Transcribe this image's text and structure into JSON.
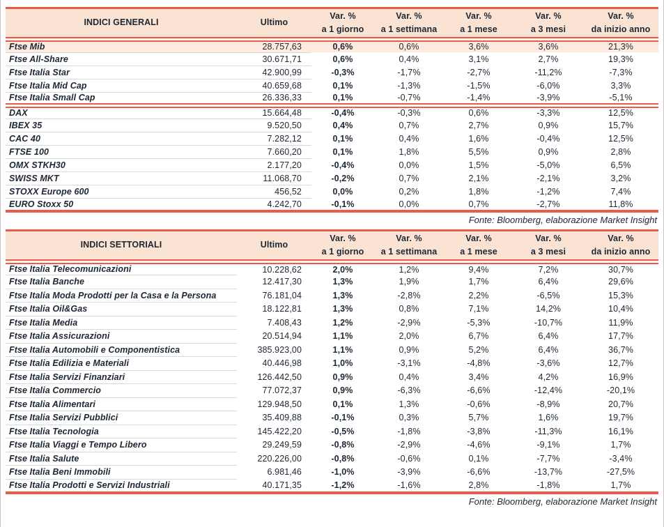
{
  "tables": [
    {
      "title": "INDICI GENERALI",
      "col_ultimo": "Ultimo",
      "cols": [
        {
          "l1": "Var. %",
          "l2": "a 1 giorno"
        },
        {
          "l1": "Var. %",
          "l2": "a 1 settimana"
        },
        {
          "l1": "Var. %",
          "l2": "a 1 mese"
        },
        {
          "l1": "Var. %",
          "l2": "a 3 mesi"
        },
        {
          "l1": "Var. %",
          "l2": "da inizio anno"
        }
      ],
      "source": "Fonte: Bloomberg, elaborazione Market Insight",
      "group_separator_after": 4,
      "rows": [
        {
          "name": "Ftse Mib",
          "ultimo": "28.757,63",
          "d1": "0,6%",
          "w1": "0,6%",
          "m1": "3,6%",
          "m3": "3,6%",
          "ytd": "21,3%",
          "highlight": true
        },
        {
          "name": "Ftse All-Share",
          "ultimo": "30.671,71",
          "d1": "0,6%",
          "w1": "0,4%",
          "m1": "3,1%",
          "m3": "2,7%",
          "ytd": "19,3%"
        },
        {
          "name": "Ftse Italia Star",
          "ultimo": "42.900,99",
          "d1": "-0,3%",
          "w1": "-1,7%",
          "m1": "-2,7%",
          "m3": "-11,2%",
          "ytd": "-7,3%"
        },
        {
          "name": "Ftse Italia Mid Cap",
          "ultimo": "40.659,68",
          "d1": "0,1%",
          "w1": "-1,3%",
          "m1": "-1,5%",
          "m3": "-6,0%",
          "ytd": "3,3%"
        },
        {
          "name": "Ftse Italia Small Cap",
          "ultimo": "26.336,33",
          "d1": "0,1%",
          "w1": "-0,7%",
          "m1": "-1,4%",
          "m3": "-3,9%",
          "ytd": "-5,1%"
        },
        {
          "name": "DAX",
          "ultimo": "15.664,48",
          "d1": "-0,4%",
          "w1": "-0,3%",
          "m1": "0,6%",
          "m3": "-3,3%",
          "ytd": "12,5%"
        },
        {
          "name": "IBEX 35",
          "ultimo": "9.520,50",
          "d1": "0,4%",
          "w1": "0,7%",
          "m1": "2,7%",
          "m3": "0,9%",
          "ytd": "15,7%"
        },
        {
          "name": "CAC 40",
          "ultimo": "7.282,12",
          "d1": "0,1%",
          "w1": "0,4%",
          "m1": "1,6%",
          "m3": "-0,4%",
          "ytd": "12,5%"
        },
        {
          "name": "FTSE 100",
          "ultimo": "7.660,20",
          "d1": "0,1%",
          "w1": "1,8%",
          "m1": "5,5%",
          "m3": "0,9%",
          "ytd": "2,8%"
        },
        {
          "name": "OMX STKH30",
          "ultimo": "2.177,20",
          "d1": "-0,4%",
          "w1": "0,0%",
          "m1": "1,5%",
          "m3": "-5,0%",
          "ytd": "6,5%"
        },
        {
          "name": "SWISS MKT",
          "ultimo": "11.068,70",
          "d1": "-0,2%",
          "w1": "0,7%",
          "m1": "2,1%",
          "m3": "-2,1%",
          "ytd": "3,2%"
        },
        {
          "name": "STOXX Europe 600",
          "ultimo": "456,52",
          "d1": "0,0%",
          "w1": "0,2%",
          "m1": "1,8%",
          "m3": "-1,2%",
          "ytd": "7,4%"
        },
        {
          "name": "EURO Stoxx 50",
          "ultimo": "4.242,70",
          "d1": "-0,1%",
          "w1": "0,0%",
          "m1": "0,7%",
          "m3": "-2,7%",
          "ytd": "11,8%"
        }
      ]
    },
    {
      "title": "INDICI SETTORIALI",
      "col_ultimo": "Ultimo",
      "cols": [
        {
          "l1": "Var. %",
          "l2": "a 1 giorno"
        },
        {
          "l1": "Var. %",
          "l2": "a 1 settimana"
        },
        {
          "l1": "Var. %",
          "l2": "a 1 mese"
        },
        {
          "l1": "Var. %",
          "l2": "a 3 mesi"
        },
        {
          "l1": "Var. %",
          "l2": "da inizio anno"
        }
      ],
      "source": "Fonte: Bloomberg, elaborazione Market Insight",
      "group_separator_after": -1,
      "rows": [
        {
          "name": "Ftse Italia Telecomunicazioni",
          "ultimo": "10.228,62",
          "d1": "2,0%",
          "w1": "1,2%",
          "m1": "9,4%",
          "m3": "7,2%",
          "ytd": "30,7%"
        },
        {
          "name": "Ftse Italia Banche",
          "ultimo": "12.417,30",
          "d1": "1,3%",
          "w1": "1,9%",
          "m1": "1,7%",
          "m3": "6,4%",
          "ytd": "29,6%"
        },
        {
          "name": "Ftse Italia Moda Prodotti per la Casa e la Persona",
          "ultimo": "76.181,04",
          "d1": "1,3%",
          "w1": "-2,8%",
          "m1": "2,2%",
          "m3": "-6,5%",
          "ytd": "15,3%"
        },
        {
          "name": "Ftse Italia Oil&Gas",
          "ultimo": "18.122,81",
          "d1": "1,3%",
          "w1": "0,8%",
          "m1": "7,1%",
          "m3": "14,2%",
          "ytd": "10,4%"
        },
        {
          "name": "Ftse Italia Media",
          "ultimo": "7.408,43",
          "d1": "1,2%",
          "w1": "-2,9%",
          "m1": "-5,3%",
          "m3": "-10,7%",
          "ytd": "11,9%"
        },
        {
          "name": "Ftse Italia Assicurazioni",
          "ultimo": "20.514,94",
          "d1": "1,1%",
          "w1": "2,0%",
          "m1": "6,7%",
          "m3": "6,4%",
          "ytd": "17,7%"
        },
        {
          "name": "Ftse Italia Automobili e Componentistica",
          "ultimo": "385.923,00",
          "d1": "1,1%",
          "w1": "0,9%",
          "m1": "5,2%",
          "m3": "6,4%",
          "ytd": "36,7%"
        },
        {
          "name": "Ftse Italia Edilizia e Materiali",
          "ultimo": "40.446,98",
          "d1": "1,0%",
          "w1": "-3,1%",
          "m1": "-4,8%",
          "m3": "-3,6%",
          "ytd": "12,7%"
        },
        {
          "name": "Ftse Italia Servizi Finanziari",
          "ultimo": "126.442,50",
          "d1": "0,9%",
          "w1": "0,4%",
          "m1": "3,4%",
          "m3": "4,2%",
          "ytd": "16,9%"
        },
        {
          "name": "Ftse Italia Commercio",
          "ultimo": "77.072,37",
          "d1": "0,9%",
          "w1": "-6,3%",
          "m1": "-6,6%",
          "m3": "-12,4%",
          "ytd": "-20,1%"
        },
        {
          "name": "Ftse Italia Alimentari",
          "ultimo": "129.948,50",
          "d1": "0,1%",
          "w1": "1,3%",
          "m1": "-0,6%",
          "m3": "-8,9%",
          "ytd": "20,7%"
        },
        {
          "name": "Ftse Italia Servizi Pubblici",
          "ultimo": "35.409,88",
          "d1": "-0,1%",
          "w1": "0,3%",
          "m1": "5,7%",
          "m3": "1,6%",
          "ytd": "19,7%"
        },
        {
          "name": "Ftse Italia Tecnologia",
          "ultimo": "145.422,20",
          "d1": "-0,5%",
          "w1": "-1,8%",
          "m1": "-3,8%",
          "m3": "-11,3%",
          "ytd": "16,1%"
        },
        {
          "name": "Ftse Italia Viaggi e Tempo Libero",
          "ultimo": "29.249,59",
          "d1": "-0,8%",
          "w1": "-2,9%",
          "m1": "-4,6%",
          "m3": "-9,1%",
          "ytd": "1,7%"
        },
        {
          "name": "Ftse Italia Salute",
          "ultimo": "220.226,00",
          "d1": "-0,8%",
          "w1": "-0,6%",
          "m1": "0,1%",
          "m3": "-7,7%",
          "ytd": "-3,4%"
        },
        {
          "name": "Ftse Italia Beni Immobili",
          "ultimo": "6.981,46",
          "d1": "-1,0%",
          "w1": "-3,9%",
          "m1": "-6,6%",
          "m3": "-13,7%",
          "ytd": "-27,5%"
        },
        {
          "name": "Ftse Italia Prodotti e Servizi Industriali",
          "ultimo": "40.171,35",
          "d1": "-1,2%",
          "w1": "-1,6%",
          "m1": "2,8%",
          "m3": "-1,8%",
          "ytd": "1,7%"
        }
      ]
    }
  ],
  "colors": {
    "accent_red": "#ea5c48",
    "header_peach": "#fbe3d3",
    "highlight_row": "#fdeadf"
  }
}
